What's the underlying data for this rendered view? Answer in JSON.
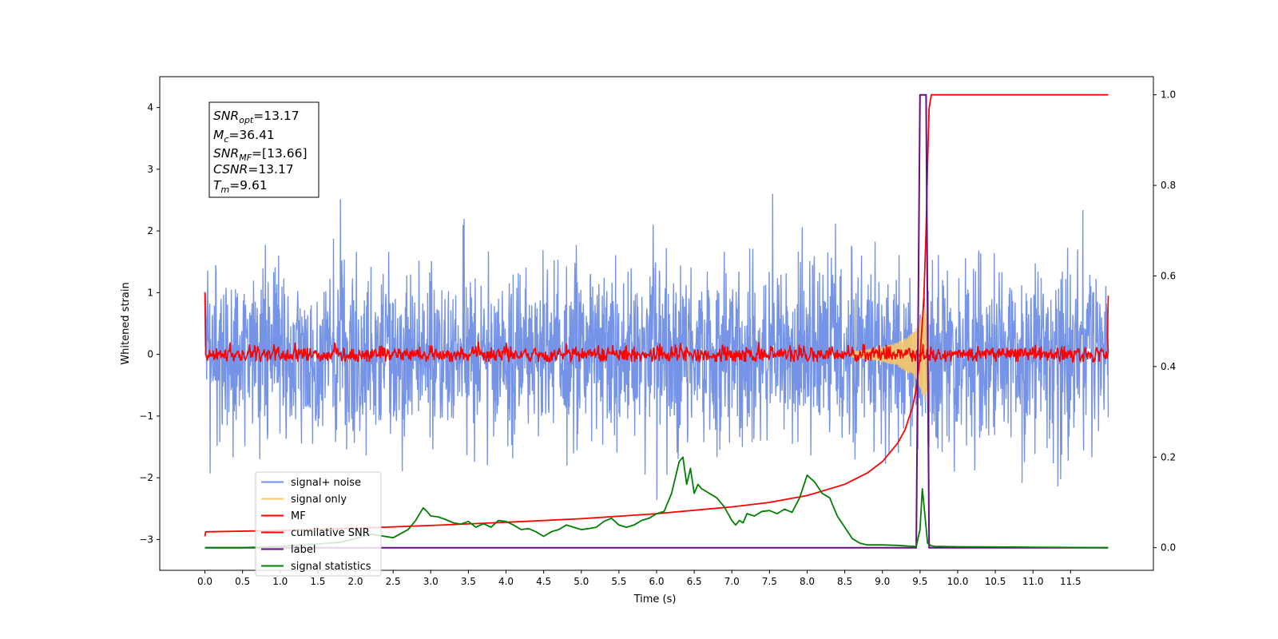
{
  "chart_data": {
    "type": "line",
    "xlabel": "Time (s)",
    "ylabel": "Whitened strain",
    "xlim": [
      -0.6,
      12.6
    ],
    "ylim": [
      -3.5,
      4.5
    ],
    "ylim_right": [
      -0.05,
      1.04
    ],
    "x_ticks": [
      "0.0",
      "0.5",
      "1.0",
      "1.5",
      "2.0",
      "2.5",
      "3.0",
      "3.5",
      "4.0",
      "4.5",
      "5.0",
      "5.5",
      "6.0",
      "6.5",
      "7.0",
      "7.5",
      "8.0",
      "8.5",
      "9.0",
      "9.5",
      "10.0",
      "10.5",
      "11.0",
      "11.5"
    ],
    "y_ticks": [
      "−3",
      "−2",
      "−1",
      "0",
      "1",
      "2",
      "3",
      "4"
    ],
    "y_ticks_right": [
      "0.0",
      "0.2",
      "0.4",
      "0.6",
      "0.8",
      "1.0"
    ],
    "grid": false,
    "legend_position": "lower-left",
    "legend": [
      {
        "label": "signal+ noise",
        "color": "#6f8ee6"
      },
      {
        "label": "signal only",
        "color": "#f7c86a"
      },
      {
        "label": "MF",
        "color": "#ff0000"
      },
      {
        "label": "cumilative SNR",
        "color": "#ff0000"
      },
      {
        "label": "label",
        "color": "#6a0d83"
      },
      {
        "label": "signal statistics",
        "color": "#008000"
      }
    ],
    "info_box": {
      "snr_opt": "=13.17",
      "mc": "=36.41",
      "snr_mf": "=[13.66]",
      "csnr": "=13.17",
      "tm": "=9.61"
    },
    "series": [
      {
        "name": "signal+ noise",
        "axis": "left",
        "description_value": "whitened noise, amplitude ~ ±2.5, x from 0 to 12"
      },
      {
        "name": "signal only",
        "axis": "left",
        "x": [
          8.6,
          9.0,
          9.2,
          9.4,
          9.5,
          9.56,
          9.6,
          9.62
        ],
        "amplitude": [
          0.05,
          0.12,
          0.2,
          0.35,
          0.55,
          0.8,
          0.6,
          0.0
        ]
      },
      {
        "name": "MF",
        "axis": "left",
        "x_range": [
          0.0,
          12.0
        ],
        "level": 0.0,
        "spread": 0.12,
        "start_value": 1.0,
        "end_value": 0.95
      },
      {
        "name": "cumilative SNR",
        "axis": "right",
        "x": [
          0.0,
          0.01,
          1.0,
          2.0,
          3.0,
          4.0,
          5.0,
          6.0,
          7.0,
          7.5,
          8.0,
          8.5,
          8.8,
          9.0,
          9.2,
          9.3,
          9.4,
          9.45,
          9.5,
          9.55,
          9.58,
          9.6,
          9.62,
          9.65,
          12.0
        ],
        "values": [
          0.025,
          0.035,
          0.038,
          0.043,
          0.049,
          0.056,
          0.064,
          0.075,
          0.09,
          0.1,
          0.115,
          0.14,
          0.165,
          0.19,
          0.23,
          0.26,
          0.31,
          0.35,
          0.42,
          0.55,
          0.7,
          0.85,
          0.97,
          1.0,
          1.0
        ]
      },
      {
        "name": "label",
        "axis": "right",
        "x": [
          0.0,
          9.45,
          9.5,
          9.58,
          9.62,
          12.0
        ],
        "values": [
          0.0,
          0.0,
          1.0,
          1.0,
          0.0,
          0.0
        ]
      },
      {
        "name": "signal statistics",
        "axis": "right",
        "x": [
          0.0,
          0.5,
          1.0,
          1.5,
          1.8,
          2.0,
          2.2,
          2.5,
          2.7,
          2.8,
          2.9,
          2.95,
          3.0,
          3.1,
          3.2,
          3.3,
          3.4,
          3.5,
          3.6,
          3.7,
          3.8,
          3.9,
          4.0,
          4.1,
          4.2,
          4.3,
          4.4,
          4.5,
          4.6,
          4.7,
          4.8,
          4.9,
          5.0,
          5.1,
          5.2,
          5.3,
          5.4,
          5.5,
          5.6,
          5.7,
          5.8,
          5.9,
          6.0,
          6.1,
          6.2,
          6.3,
          6.35,
          6.4,
          6.45,
          6.5,
          6.55,
          6.6,
          6.7,
          6.8,
          6.9,
          7.0,
          7.05,
          7.1,
          7.15,
          7.2,
          7.3,
          7.4,
          7.5,
          7.6,
          7.7,
          7.8,
          7.9,
          8.0,
          8.1,
          8.2,
          8.3,
          8.4,
          8.5,
          8.6,
          8.7,
          8.8,
          9.0,
          9.2,
          9.4,
          9.45,
          9.5,
          9.53,
          9.56,
          9.6,
          9.65,
          9.7,
          10.0,
          11.0,
          12.0
        ],
        "values": [
          0.0,
          0.0,
          0.003,
          0.008,
          0.012,
          0.02,
          0.03,
          0.022,
          0.04,
          0.06,
          0.088,
          0.08,
          0.07,
          0.068,
          0.062,
          0.055,
          0.052,
          0.058,
          0.045,
          0.053,
          0.045,
          0.06,
          0.058,
          0.05,
          0.04,
          0.042,
          0.035,
          0.025,
          0.035,
          0.04,
          0.05,
          0.045,
          0.04,
          0.042,
          0.045,
          0.058,
          0.065,
          0.05,
          0.045,
          0.05,
          0.06,
          0.065,
          0.075,
          0.08,
          0.12,
          0.19,
          0.2,
          0.14,
          0.175,
          0.12,
          0.14,
          0.13,
          0.12,
          0.11,
          0.09,
          0.06,
          0.05,
          0.06,
          0.055,
          0.075,
          0.07,
          0.08,
          0.082,
          0.075,
          0.085,
          0.078,
          0.11,
          0.16,
          0.145,
          0.12,
          0.11,
          0.07,
          0.045,
          0.02,
          0.01,
          0.006,
          0.006,
          0.005,
          0.003,
          0.003,
          0.04,
          0.13,
          0.08,
          0.01,
          0.004,
          0.003,
          0.002,
          0.001,
          0.0
        ]
      }
    ]
  }
}
